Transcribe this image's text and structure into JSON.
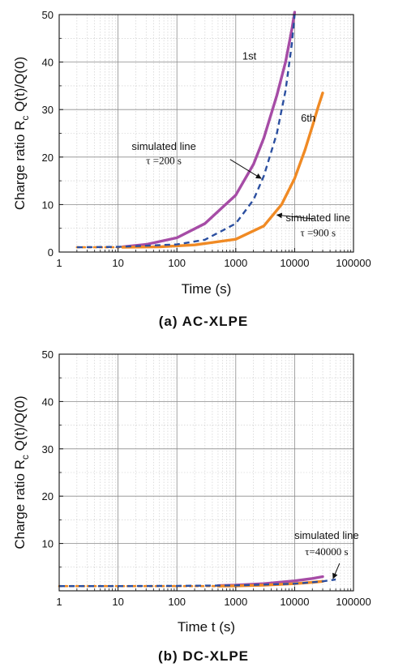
{
  "chart_data": [
    {
      "type": "line",
      "caption": "(a) AC-XLPE",
      "xlabel": "Time (s)",
      "ylabel_main": "Charge ratio R",
      "ylabel_sub": "c",
      "ylabel_tail": " Q(t)/Q(0)",
      "x_scale": "log",
      "xlim": [
        1,
        100000
      ],
      "ylim": [
        0,
        50
      ],
      "x_ticks": [
        1,
        10,
        100,
        1000,
        10000,
        100000
      ],
      "x_tick_labels": [
        "1",
        "10",
        "100",
        "1000",
        "10000",
        "100000"
      ],
      "y_ticks": [
        0,
        10,
        20,
        30,
        40,
        50
      ],
      "y_tick_labels": [
        "0",
        "10",
        "20",
        "30",
        "40",
        "50"
      ],
      "grid": true,
      "series": [
        {
          "name": "1st",
          "color": "#a64ca6",
          "style": "solid",
          "x": [
            12,
            30,
            100,
            300,
            1000,
            2000,
            3000,
            5000,
            7000,
            9000,
            10000
          ],
          "y": [
            1.1,
            1.6,
            3.0,
            6.0,
            12.0,
            18.5,
            24.0,
            33.0,
            40.0,
            47.0,
            50.5
          ]
        },
        {
          "name": "6th",
          "color": "#f08a24",
          "style": "solid",
          "x": [
            12,
            50,
            200,
            1000,
            3000,
            6000,
            10000,
            15000,
            20000,
            25000,
            30000
          ],
          "y": [
            1.0,
            1.1,
            1.5,
            2.7,
            5.5,
            10.0,
            15.5,
            21.5,
            26.5,
            30.5,
            33.5
          ]
        },
        {
          "name": "",
          "color": "#2b4fa0",
          "style": "dashed",
          "x": [
            2,
            10,
            100,
            300,
            1000,
            2000,
            3000,
            5000,
            7000,
            9000,
            10000
          ],
          "y": [
            1.0,
            1.1,
            1.6,
            2.6,
            6.0,
            11.0,
            16.0,
            25.0,
            34.0,
            44.0,
            50.0
          ]
        },
        {
          "name": "",
          "color": "#f08a24",
          "style": "dotted",
          "x": [
            2,
            5,
            12
          ],
          "y": [
            1.0,
            1.0,
            1.0
          ]
        }
      ],
      "labels": [
        {
          "text": "1st",
          "x": 1700,
          "y": 40.5
        },
        {
          "text": "6th",
          "x": 17000,
          "y": 27.5
        }
      ],
      "annotations": [
        {
          "line1": "simulated line",
          "line2": "τ =200 s",
          "text_x": 60,
          "text_y": 21.5,
          "text_y2": 18.5,
          "arrow_from": [
            800,
            19.5
          ],
          "arrow_to": [
            2700,
            15.5
          ]
        },
        {
          "line1": "simulated line",
          "line2": "τ =900 s",
          "text_x": 25000,
          "text_y": 6.5,
          "text_y2": 3.3,
          "arrow_from": [
            21000,
            7.0
          ],
          "arrow_to": [
            5000,
            7.8
          ]
        }
      ]
    },
    {
      "type": "line",
      "caption": "(b) DC-XLPE",
      "xlabel": "Time t (s)",
      "ylabel_main": "Charge ratio R",
      "ylabel_sub": "c",
      "ylabel_tail": " Q(t)/Q(0)",
      "x_scale": "log",
      "xlim": [
        1,
        100000
      ],
      "ylim": [
        0,
        50
      ],
      "x_ticks": [
        1,
        10,
        100,
        1000,
        10000,
        100000
      ],
      "x_tick_labels": [
        "1",
        "10",
        "100",
        "1000",
        "10000",
        "100000"
      ],
      "y_ticks": [
        10,
        20,
        30,
        40,
        50
      ],
      "y_tick_labels": [
        "10",
        "20",
        "30",
        "40",
        "50"
      ],
      "grid": true,
      "series": [
        {
          "name": "",
          "color": "#a64ca6",
          "style": "solid",
          "x": [
            500,
            1000,
            3000,
            10000,
            20000,
            30000
          ],
          "y": [
            1.1,
            1.2,
            1.5,
            2.1,
            2.6,
            3.0
          ]
        },
        {
          "name": "",
          "color": "#f08a24",
          "style": "solid",
          "x": [
            500,
            1000,
            3000,
            10000,
            20000,
            30000
          ],
          "y": [
            1.0,
            1.05,
            1.2,
            1.5,
            1.8,
            2.0
          ]
        },
        {
          "name": "",
          "color": "#2b4fa0",
          "style": "dashed",
          "x": [
            1,
            10,
            100,
            1000,
            10000,
            30000,
            50000
          ],
          "y": [
            1.0,
            1.0,
            1.05,
            1.15,
            1.5,
            2.0,
            2.4
          ]
        },
        {
          "name": "",
          "color": "#f08a24",
          "style": "dotted",
          "x": [
            1,
            10,
            100,
            500
          ],
          "y": [
            1.0,
            1.0,
            1.0,
            1.0
          ]
        }
      ],
      "labels": [],
      "annotations": [
        {
          "line1": "simulated line",
          "line2": "τ=40000 s",
          "text_x": 35000,
          "text_y": 11.0,
          "text_y2": 7.5,
          "arrow_from": [
            58000,
            5.8
          ],
          "arrow_to": [
            45000,
            2.6
          ]
        }
      ]
    }
  ]
}
